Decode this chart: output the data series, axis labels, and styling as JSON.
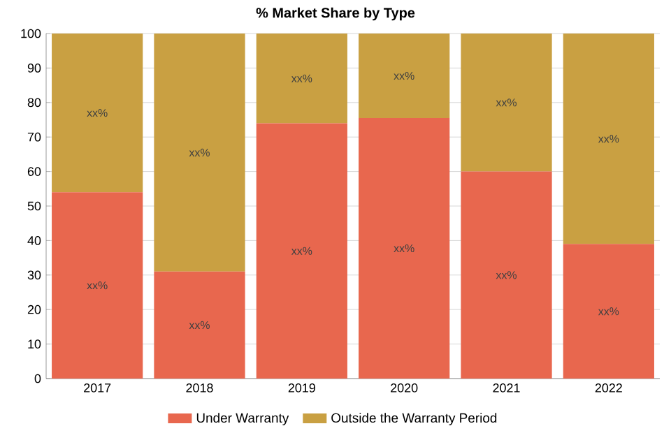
{
  "chart_data": {
    "type": "bar",
    "title": "% Market Share by Type",
    "categories": [
      "2017",
      "2018",
      "2019",
      "2020",
      "2021",
      "2022"
    ],
    "series": [
      {
        "name": "Under Warranty",
        "color": "#e8674e",
        "values": [
          54,
          31,
          74,
          75.5,
          60,
          39
        ],
        "value_labels": [
          "xx%",
          "xx%",
          "xx%",
          "xx%",
          "xx%",
          "xx%"
        ]
      },
      {
        "name": "Outside the Warranty Period",
        "color": "#c9a042",
        "values": [
          46,
          69,
          26,
          24.5,
          40,
          61
        ],
        "value_labels": [
          "xx%",
          "xx%",
          "xx%",
          "xx%",
          "xx%",
          "xx%"
        ]
      }
    ],
    "stacked": true,
    "ylim": [
      0,
      100
    ],
    "yticks": [
      0,
      10,
      20,
      30,
      40,
      50,
      60,
      70,
      80,
      90,
      100
    ],
    "grid": "y",
    "legend": "bottom"
  }
}
